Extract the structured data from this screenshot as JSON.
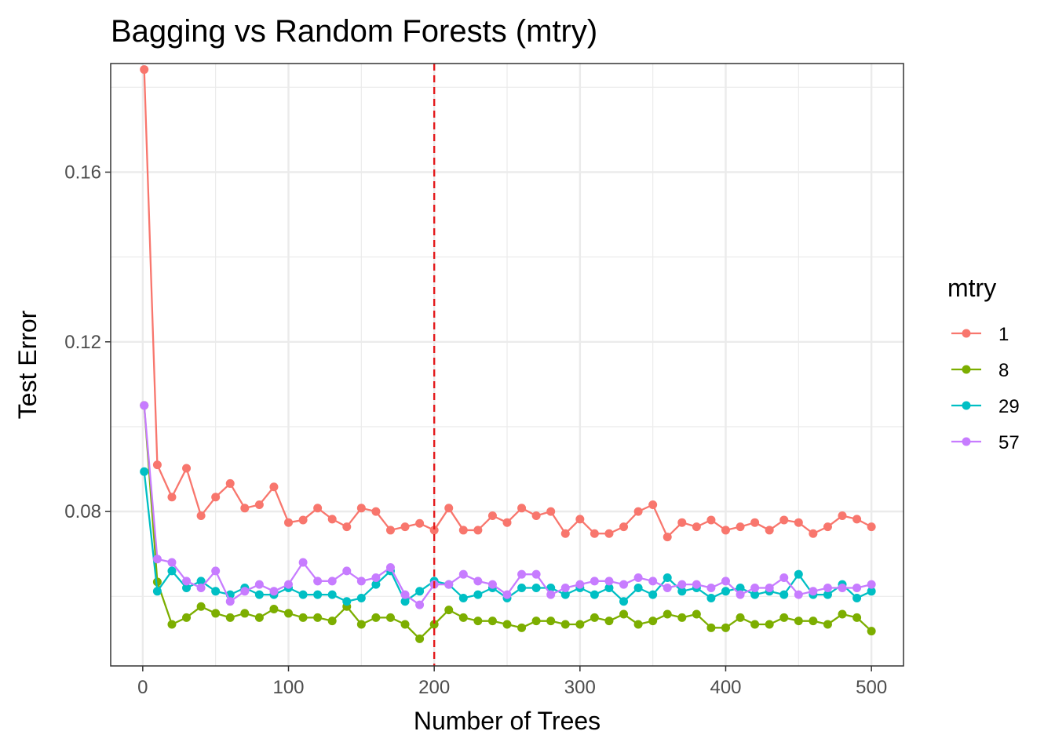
{
  "chart_data": {
    "type": "line",
    "title": "Bagging vs Random Forests (mtry)",
    "xlabel": "Number of Trees",
    "ylabel": "Test Error",
    "xlim": [
      -22,
      522
    ],
    "ylim": [
      0.0436,
      0.1856
    ],
    "x_ticks": [
      0,
      100,
      200,
      300,
      400,
      500
    ],
    "x_tick_labels": [
      "0",
      "100",
      "200",
      "300",
      "400",
      "500"
    ],
    "y_ticks": [
      0.08,
      0.12,
      0.16
    ],
    "y_tick_labels": [
      "0.08",
      "0.12",
      "0.16"
    ],
    "y_minor_ticks": [
      0.06,
      0.1,
      0.14,
      0.18
    ],
    "x_minor_ticks": [
      50,
      150,
      250,
      350,
      450
    ],
    "grid": true,
    "legend": {
      "title": "mtry",
      "position": "right"
    },
    "vline": {
      "x": 200,
      "color": "#e41a1c",
      "style": "dashed"
    },
    "x": [
      1,
      10,
      20,
      30,
      40,
      50,
      60,
      70,
      80,
      90,
      100,
      110,
      120,
      130,
      140,
      150,
      160,
      170,
      180,
      190,
      200,
      210,
      220,
      230,
      240,
      250,
      260,
      270,
      280,
      290,
      300,
      310,
      320,
      330,
      340,
      350,
      360,
      370,
      380,
      390,
      400,
      410,
      420,
      430,
      440,
      450,
      460,
      470,
      480,
      490,
      500
    ],
    "series": [
      {
        "name": "1",
        "color": "#F8766D",
        "values": [
          0.1842,
          0.091,
          0.0834,
          0.0902,
          0.079,
          0.0834,
          0.0866,
          0.0808,
          0.0816,
          0.0858,
          0.0774,
          0.078,
          0.0808,
          0.0782,
          0.0764,
          0.0808,
          0.08,
          0.0756,
          0.0764,
          0.0772,
          0.0756,
          0.0808,
          0.0756,
          0.0756,
          0.079,
          0.0774,
          0.0808,
          0.079,
          0.08,
          0.0748,
          0.0782,
          0.0748,
          0.0748,
          0.0764,
          0.08,
          0.0816,
          0.074,
          0.0774,
          0.0764,
          0.078,
          0.0756,
          0.0764,
          0.0774,
          0.0756,
          0.078,
          0.0774,
          0.0748,
          0.0764,
          0.079,
          0.0782,
          0.0764
        ]
      },
      {
        "name": "8",
        "color": "#7CAE00",
        "values": [
          0.105,
          0.0634,
          0.0534,
          0.055,
          0.0576,
          0.056,
          0.055,
          0.056,
          0.055,
          0.057,
          0.056,
          0.055,
          0.055,
          0.0542,
          0.0576,
          0.0534,
          0.055,
          0.055,
          0.0534,
          0.05,
          0.0534,
          0.0568,
          0.055,
          0.0542,
          0.0542,
          0.0534,
          0.0526,
          0.0542,
          0.0542,
          0.0534,
          0.0534,
          0.055,
          0.0542,
          0.0558,
          0.0534,
          0.0542,
          0.0558,
          0.055,
          0.0558,
          0.0526,
          0.0526,
          0.055,
          0.0534,
          0.0534,
          0.055,
          0.0542,
          0.0542,
          0.0534,
          0.0558,
          0.055,
          0.0518
        ]
      },
      {
        "name": "29",
        "color": "#00BFC4",
        "values": [
          0.0894,
          0.0612,
          0.066,
          0.062,
          0.0636,
          0.0612,
          0.0604,
          0.062,
          0.0604,
          0.0604,
          0.062,
          0.0604,
          0.0604,
          0.0604,
          0.0588,
          0.0596,
          0.0628,
          0.066,
          0.0588,
          0.0612,
          0.0636,
          0.0628,
          0.0596,
          0.0604,
          0.062,
          0.0596,
          0.062,
          0.062,
          0.062,
          0.0604,
          0.062,
          0.0604,
          0.062,
          0.0588,
          0.062,
          0.0604,
          0.0644,
          0.0612,
          0.062,
          0.0596,
          0.0612,
          0.062,
          0.0604,
          0.0612,
          0.0604,
          0.0652,
          0.0604,
          0.0604,
          0.0628,
          0.0596,
          0.0612
        ]
      },
      {
        "name": "57",
        "color": "#C77CFF",
        "values": [
          0.105,
          0.0688,
          0.068,
          0.0636,
          0.062,
          0.066,
          0.0588,
          0.0612,
          0.0628,
          0.0612,
          0.0628,
          0.068,
          0.0636,
          0.0636,
          0.066,
          0.0636,
          0.0644,
          0.0668,
          0.0604,
          0.058,
          0.0628,
          0.0628,
          0.0652,
          0.0636,
          0.0628,
          0.0604,
          0.0652,
          0.0652,
          0.0604,
          0.062,
          0.0628,
          0.0636,
          0.0636,
          0.0628,
          0.0644,
          0.0636,
          0.062,
          0.0628,
          0.0628,
          0.062,
          0.0636,
          0.0604,
          0.062,
          0.062,
          0.0644,
          0.0604,
          0.0612,
          0.062,
          0.062,
          0.062,
          0.0628
        ]
      }
    ]
  }
}
